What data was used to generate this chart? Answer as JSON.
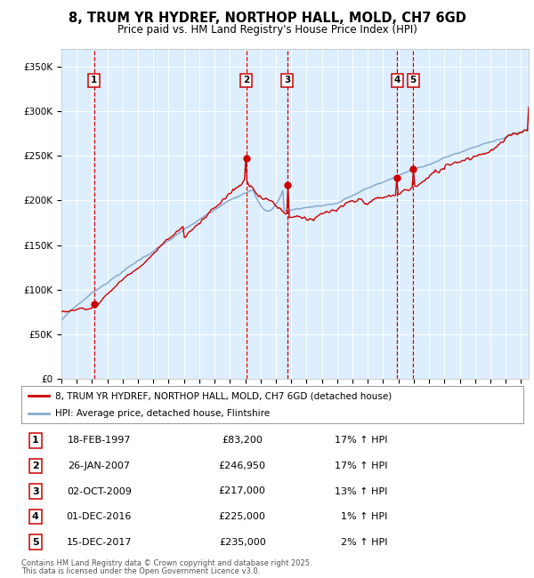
{
  "title": "8, TRUM YR HYDREF, NORTHOP HALL, MOLD, CH7 6GD",
  "subtitle": "Price paid vs. HM Land Registry's House Price Index (HPI)",
  "legend_line1": "8, TRUM YR HYDREF, NORTHOP HALL, MOLD, CH7 6GD (detached house)",
  "legend_line2": "HPI: Average price, detached house, Flintshire",
  "footer1": "Contains HM Land Registry data © Crown copyright and database right 2025.",
  "footer2": "This data is licensed under the Open Government Licence v3.0.",
  "transactions": [
    {
      "num": 1,
      "date": "18-FEB-1997",
      "price": 83200,
      "pct": "17%",
      "dir": "↑",
      "year": 1997.13
    },
    {
      "num": 2,
      "date": "26-JAN-2007",
      "price": 246950,
      "pct": "17%",
      "dir": "↑",
      "year": 2007.07
    },
    {
      "num": 3,
      "date": "02-OCT-2009",
      "price": 217000,
      "pct": "13%",
      "dir": "↑",
      "year": 2009.75
    },
    {
      "num": 4,
      "date": "01-DEC-2016",
      "price": 225000,
      "pct": "1%",
      "dir": "↑",
      "year": 2016.92
    },
    {
      "num": 5,
      "date": "15-DEC-2017",
      "price": 235000,
      "pct": "2%",
      "dir": "↑",
      "year": 2017.96
    }
  ],
  "vline_colors": {
    "1": "#cc0000",
    "2": "#cc0000",
    "3": "#cc0000",
    "4": "#cc0000",
    "5": "#cc0000"
  },
  "red_line_color": "#cc0000",
  "blue_line_color": "#88aacc",
  "dot_color": "#cc0000",
  "plot_bg_color": "#ddeeff",
  "grid_color": "#ffffff",
  "ylim": [
    0,
    370000
  ],
  "xlim_start": 1995.0,
  "xlim_end": 2025.5,
  "yticks": [
    0,
    50000,
    100000,
    150000,
    200000,
    250000,
    300000,
    350000
  ],
  "xticks": [
    1995,
    1996,
    1997,
    1998,
    1999,
    2000,
    2001,
    2002,
    2003,
    2004,
    2005,
    2006,
    2007,
    2008,
    2009,
    2010,
    2011,
    2012,
    2013,
    2014,
    2015,
    2016,
    2017,
    2018,
    2019,
    2020,
    2021,
    2022,
    2023,
    2024,
    2025
  ]
}
